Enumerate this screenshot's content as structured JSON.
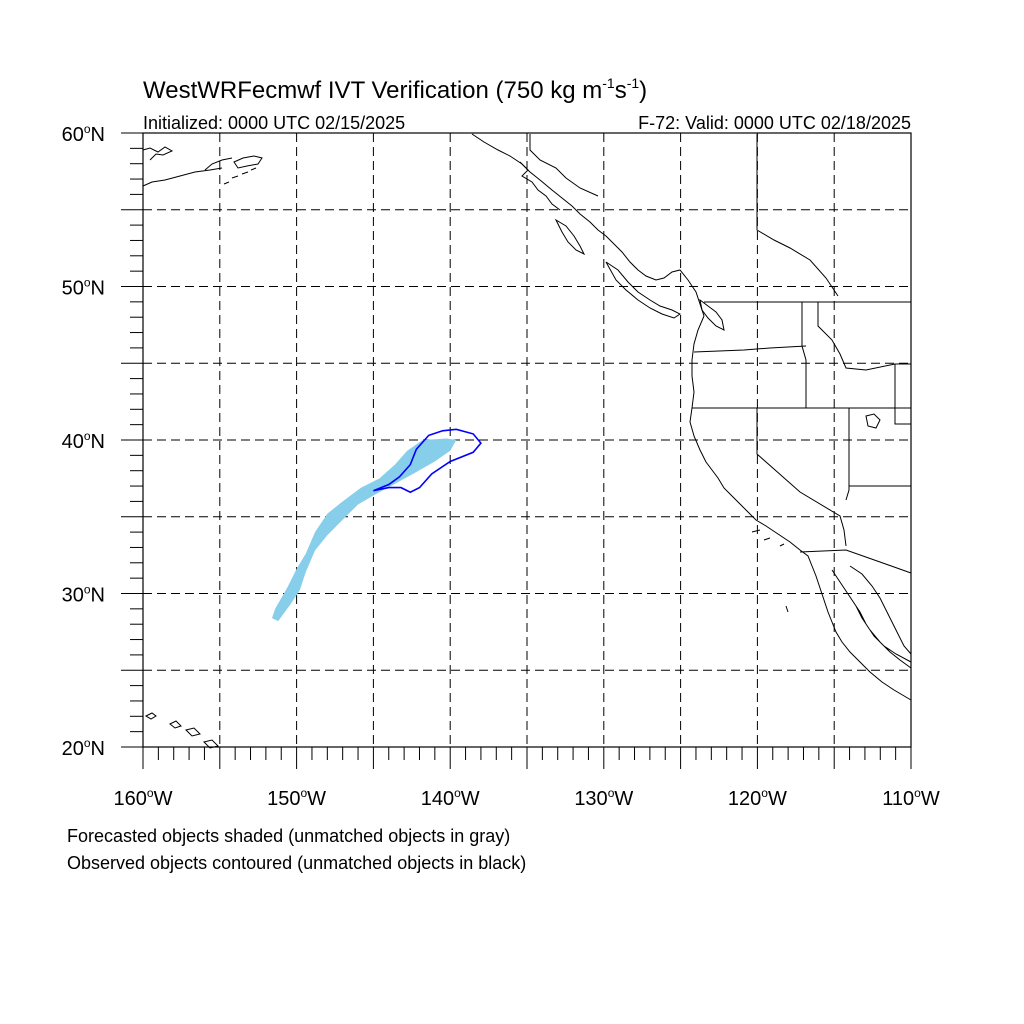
{
  "title": {
    "main": "WestWRFecmwf IVT Verification (750 kg m",
    "sup1": "-1",
    "mid": "s",
    "sup2": "-1",
    "end": ")"
  },
  "subtitle_left": "Initialized: 0000 UTC 02/15/2025",
  "subtitle_right": "F-72: Valid: 0000 UTC 02/18/2025",
  "lat_labels": [
    {
      "value": 60,
      "deg": "60",
      "hemi": "N"
    },
    {
      "value": 50,
      "deg": "50",
      "hemi": "N"
    },
    {
      "value": 40,
      "deg": "40",
      "hemi": "N"
    },
    {
      "value": 30,
      "deg": "30",
      "hemi": "N"
    },
    {
      "value": 20,
      "deg": "20",
      "hemi": "N"
    }
  ],
  "lon_labels": [
    {
      "value": -160,
      "deg": "160",
      "hemi": "W"
    },
    {
      "value": -150,
      "deg": "150",
      "hemi": "W"
    },
    {
      "value": -140,
      "deg": "140",
      "hemi": "W"
    },
    {
      "value": -130,
      "deg": "130",
      "hemi": "W"
    },
    {
      "value": -120,
      "deg": "120",
      "hemi": "W"
    },
    {
      "value": -110,
      "deg": "110",
      "hemi": "W"
    }
  ],
  "map_extent": {
    "lon_min": -160,
    "lon_max": -110,
    "lat_min": 20,
    "lat_max": 60,
    "grid_step": 5
  },
  "colors": {
    "forecast_fill": "#87ceeb",
    "observed_contour": "#0000ff",
    "coastline": "#000000",
    "grid": "#000000"
  },
  "footnote_1": "Forecasted objects shaded (unmatched objects in gray)",
  "footnote_2": "Observed objects contoured (unmatched objects in black)",
  "objects": {
    "forecast": [
      [
        -151.2,
        28.2
      ],
      [
        -150.4,
        29.3
      ],
      [
        -149.8,
        30.2
      ],
      [
        -149.4,
        31.4
      ],
      [
        -148.8,
        32.8
      ],
      [
        -148.0,
        33.8
      ],
      [
        -147.0,
        34.8
      ],
      [
        -146.0,
        35.8
      ],
      [
        -144.8,
        36.5
      ],
      [
        -143.5,
        37.2
      ],
      [
        -142.4,
        37.8
      ],
      [
        -141.0,
        38.6
      ],
      [
        -140.0,
        39.3
      ],
      [
        -139.6,
        40.0
      ],
      [
        -140.2,
        40.1
      ],
      [
        -141.8,
        40.0
      ],
      [
        -142.8,
        39.3
      ],
      [
        -143.6,
        38.4
      ],
      [
        -144.6,
        37.5
      ],
      [
        -145.8,
        36.9
      ],
      [
        -147.0,
        36.0
      ],
      [
        -148.0,
        35.2
      ],
      [
        -148.8,
        34.0
      ],
      [
        -149.4,
        32.6
      ],
      [
        -150.0,
        31.6
      ],
      [
        -150.6,
        30.4
      ],
      [
        -151.4,
        29.0
      ],
      [
        -151.6,
        28.4
      ]
    ],
    "observed": [
      [
        -145.0,
        36.7
      ],
      [
        -144.0,
        37.1
      ],
      [
        -143.3,
        37.6
      ],
      [
        -142.6,
        38.4
      ],
      [
        -142.2,
        39.4
      ],
      [
        -141.4,
        40.3
      ],
      [
        -140.5,
        40.6
      ],
      [
        -139.6,
        40.7
      ],
      [
        -138.5,
        40.4
      ],
      [
        -138.0,
        39.8
      ],
      [
        -138.5,
        39.2
      ],
      [
        -140.0,
        38.6
      ],
      [
        -141.2,
        37.8
      ],
      [
        -142.0,
        36.9
      ],
      [
        -142.6,
        36.6
      ],
      [
        -143.2,
        36.9
      ],
      [
        -144.0,
        36.9
      ]
    ]
  }
}
